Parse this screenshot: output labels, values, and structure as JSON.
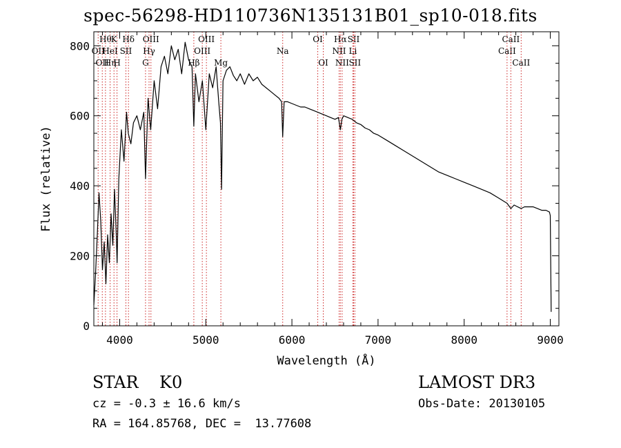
{
  "chart_data": {
    "type": "line",
    "title": "spec-56298-HD110736N135131B01_sp10-018.fits",
    "xlabel": "Wavelength (Å)",
    "ylabel": "Flux (relative)",
    "xlim": [
      3700,
      9100
    ],
    "ylim": [
      0,
      840
    ],
    "xticks": [
      4000,
      5000,
      6000,
      7000,
      8000,
      9000
    ],
    "yticks": [
      0,
      200,
      400,
      600,
      800
    ],
    "series": [
      {
        "name": "flux",
        "x": [
          3700,
          3720,
          3740,
          3760,
          3780,
          3800,
          3820,
          3840,
          3860,
          3880,
          3900,
          3920,
          3940,
          3960,
          3970,
          3990,
          4020,
          4050,
          4080,
          4100,
          4130,
          4160,
          4200,
          4240,
          4280,
          4300,
          4330,
          4360,
          4400,
          4440,
          4480,
          4520,
          4560,
          4600,
          4640,
          4680,
          4720,
          4760,
          4800,
          4840,
          4861,
          4880,
          4920,
          4960,
          5000,
          5040,
          5080,
          5120,
          5150,
          5170,
          5183,
          5200,
          5240,
          5280,
          5320,
          5360,
          5400,
          5450,
          5500,
          5550,
          5600,
          5650,
          5700,
          5750,
          5800,
          5850,
          5880,
          5893,
          5910,
          5950,
          6000,
          6050,
          6100,
          6150,
          6200,
          6250,
          6300,
          6350,
          6400,
          6450,
          6500,
          6540,
          6563,
          6580,
          6600,
          6650,
          6700,
          6750,
          6800,
          6850,
          6900,
          6950,
          7000,
          7100,
          7200,
          7300,
          7400,
          7500,
          7600,
          7700,
          7800,
          7900,
          8000,
          8100,
          8200,
          8300,
          8400,
          8498,
          8542,
          8580,
          8620,
          8662,
          8700,
          8750,
          8800,
          8850,
          8900,
          8950,
          8990,
          9000,
          9010
        ],
        "y": [
          60,
          150,
          260,
          380,
          300,
          160,
          240,
          120,
          260,
          180,
          320,
          230,
          390,
          260,
          180,
          420,
          560,
          470,
          610,
          550,
          520,
          580,
          600,
          560,
          610,
          420,
          650,
          560,
          700,
          620,
          740,
          770,
          720,
          800,
          760,
          790,
          720,
          810,
          760,
          740,
          570,
          720,
          640,
          700,
          560,
          720,
          680,
          740,
          640,
          580,
          390,
          700,
          730,
          740,
          715,
          700,
          720,
          690,
          720,
          700,
          710,
          690,
          680,
          670,
          660,
          650,
          640,
          540,
          640,
          640,
          635,
          630,
          625,
          625,
          620,
          615,
          610,
          605,
          600,
          595,
          590,
          595,
          560,
          590,
          600,
          595,
          590,
          580,
          575,
          565,
          560,
          550,
          545,
          530,
          515,
          500,
          485,
          470,
          455,
          440,
          430,
          420,
          410,
          400,
          390,
          380,
          365,
          350,
          335,
          345,
          340,
          335,
          340,
          340,
          340,
          335,
          330,
          330,
          325,
          315,
          40
        ]
      }
    ],
    "lines": [
      {
        "wave": 3750,
        "labels": [
          "OII"
        ],
        "rows": [
          2
        ]
      },
      {
        "wave": 3798,
        "labels": [
          "OII"
        ],
        "rows": [
          3
        ]
      },
      {
        "wave": 3835,
        "labels": [
          "Hθ"
        ],
        "rows": [
          1
        ]
      },
      {
        "wave": 3889,
        "labels": [
          "Hη",
          "HeI"
        ],
        "rows": [
          3,
          2
        ]
      },
      {
        "wave": 3934,
        "labels": [
          "K"
        ],
        "rows": [
          1
        ]
      },
      {
        "wave": 3969,
        "labels": [
          "H"
        ],
        "rows": [
          3
        ]
      },
      {
        "wave": 4072,
        "labels": [
          "SII"
        ],
        "rows": [
          2
        ]
      },
      {
        "wave": 4102,
        "labels": [
          "Hδ"
        ],
        "rows": [
          1
        ]
      },
      {
        "wave": 4300,
        "labels": [
          "G"
        ],
        "rows": [
          3
        ]
      },
      {
        "wave": 4341,
        "labels": [
          "Hγ"
        ],
        "rows": [
          2
        ]
      },
      {
        "wave": 4363,
        "labels": [
          "OIII"
        ],
        "rows": [
          1
        ]
      },
      {
        "wave": 4861,
        "labels": [
          "Hβ"
        ],
        "rows": [
          3
        ]
      },
      {
        "wave": 4959,
        "labels": [
          "OIII"
        ],
        "rows": [
          2
        ]
      },
      {
        "wave": 5007,
        "labels": [
          "OIII"
        ],
        "rows": [
          1
        ]
      },
      {
        "wave": 5175,
        "labels": [
          "Mg"
        ],
        "rows": [
          3
        ]
      },
      {
        "wave": 5893,
        "labels": [
          "Na"
        ],
        "rows": [
          2
        ]
      },
      {
        "wave": 6300,
        "labels": [
          "OI"
        ],
        "rows": [
          1
        ]
      },
      {
        "wave": 6364,
        "labels": [
          "OI"
        ],
        "rows": [
          3
        ]
      },
      {
        "wave": 6548,
        "labels": [
          "NII"
        ],
        "rows": [
          2
        ]
      },
      {
        "wave": 6563,
        "labels": [
          "Hα"
        ],
        "rows": [
          1
        ]
      },
      {
        "wave": 6583,
        "labels": [
          "NII"
        ],
        "rows": [
          3
        ]
      },
      {
        "wave": 6708,
        "labels": [
          "Li"
        ],
        "rows": [
          2
        ]
      },
      {
        "wave": 6716,
        "labels": [
          "SII"
        ],
        "rows": [
          1
        ]
      },
      {
        "wave": 6731,
        "labels": [
          "SII"
        ],
        "rows": [
          3
        ]
      },
      {
        "wave": 8498,
        "labels": [
          "CaII"
        ],
        "rows": [
          2
        ]
      },
      {
        "wave": 8542,
        "labels": [
          "CaII"
        ],
        "rows": [
          1
        ]
      },
      {
        "wave": 8662,
        "labels": [
          "CaII"
        ],
        "rows": [
          3
        ]
      }
    ]
  },
  "info": {
    "class_line": "STAR    K0",
    "cz_line": "cz = -0.3 ± 16.6 km/s",
    "radec_line": "RA = 164.85768, DEC =  13.77608",
    "survey": "LAMOST DR3",
    "obs_date": "Obs-Date: 20130105"
  }
}
